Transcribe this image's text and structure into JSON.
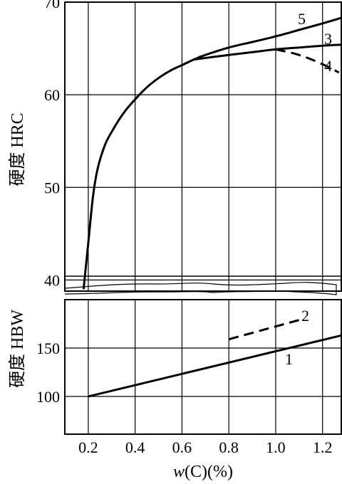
{
  "chart_data": {
    "type": "line",
    "xlabel_prefix": "w",
    "xlabel_suffix": "(C)(%)",
    "x_ticks": [
      "0.2",
      "0.4",
      "0.6",
      "0.8",
      "1.0",
      "1.2"
    ],
    "xlim": [
      0.1,
      1.28
    ],
    "grid": true,
    "panels": [
      {
        "name": "HRC",
        "ylabel": "硬度 HRC",
        "ylim": [
          38.8,
          70
        ],
        "y_ticks": [
          "40",
          "50",
          "60",
          "70"
        ],
        "series": [
          {
            "name": "5",
            "style": "solid",
            "x": [
              0.18,
              0.2,
              0.22,
              0.24,
              0.27,
              0.3,
              0.35,
              0.4,
              0.45,
              0.5,
              0.55,
              0.6,
              0.65,
              0.7,
              0.8,
              0.9,
              1.0,
              1.1,
              1.2,
              1.28
            ],
            "y": [
              39,
              44,
              49,
              52,
              54.5,
              56,
              58,
              59.5,
              60.8,
              61.8,
              62.6,
              63.2,
              63.8,
              64.3,
              65.1,
              65.7,
              66.3,
              67,
              67.7,
              68.3
            ]
          },
          {
            "name": "3",
            "style": "solid",
            "x": [
              0.65,
              0.8,
              0.9,
              1.0,
              1.1,
              1.2,
              1.28
            ],
            "y": [
              63.8,
              64.3,
              64.6,
              64.9,
              65.1,
              65.3,
              65.4
            ]
          },
          {
            "name": "4",
            "style": "dashed",
            "x": [
              1.0,
              1.1,
              1.2,
              1.27
            ],
            "y": [
              64.9,
              64.3,
              63.3,
              62.4
            ]
          }
        ]
      },
      {
        "name": "HBW",
        "ylabel": "硬度 HBW",
        "ylim": [
          61,
          200
        ],
        "y_ticks": [
          "100",
          "150"
        ],
        "series": [
          {
            "name": "1",
            "style": "solid",
            "x": [
              0.2,
              1.28
            ],
            "y": [
              100,
              163
            ]
          },
          {
            "name": "2",
            "style": "dashed",
            "x": [
              0.8,
              1.1
            ],
            "y": [
              159,
              179
            ]
          }
        ]
      }
    ]
  }
}
